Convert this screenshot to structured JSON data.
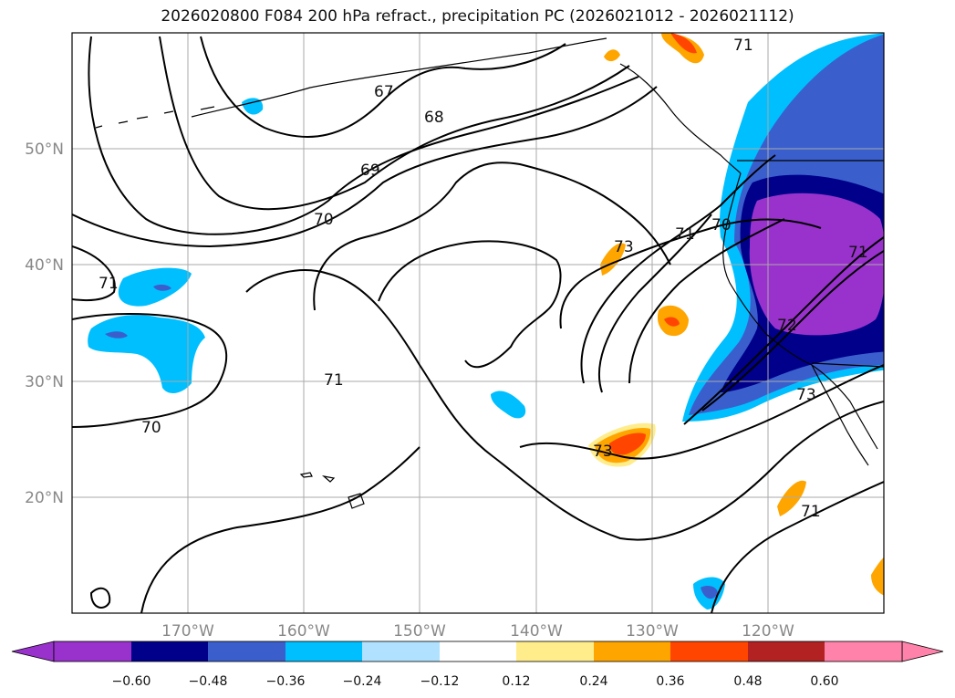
{
  "title": "2026020800 F084 200 hPa refract., precipitation PC (2026021012 - 2026021112)",
  "map": {
    "type": "contour-map",
    "projection": "equirectangular",
    "lon_range": [
      -180,
      -110
    ],
    "lat_range": [
      10,
      60
    ],
    "lat_ticks": [
      "50°N",
      "40°N",
      "30°N",
      "20°N"
    ],
    "lon_ticks": [
      "170°W",
      "160°W",
      "150°W",
      "140°W",
      "130°W",
      "120°W"
    ],
    "grid": true,
    "contour_labels": [
      "67",
      "68",
      "69",
      "70",
      "71",
      "71",
      "71",
      "70",
      "71",
      "73",
      "73",
      "73",
      "72",
      "71",
      "71",
      "70"
    ]
  },
  "colorbar": {
    "orientation": "horizontal",
    "extend": "both",
    "tick_labels": [
      "−0.60",
      "−0.48",
      "−0.36",
      "−0.24",
      "−0.12",
      "0.12",
      "0.24",
      "0.36",
      "0.48",
      "0.60"
    ],
    "colors": [
      "#9932cc",
      "#00008b",
      "#3a5fcd",
      "#00bfff",
      "#b0e2ff",
      "#ffffff",
      "#ffec8b",
      "#ffa500",
      "#ff4500",
      "#b22222",
      "#ff82ab"
    ]
  }
}
